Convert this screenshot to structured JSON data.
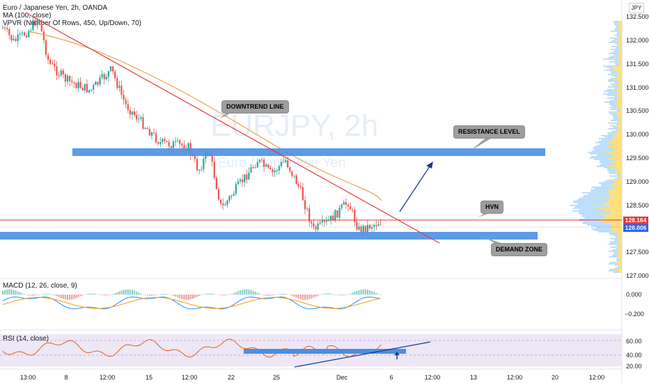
{
  "header": {
    "title": "Euro / Japanese Yen, 2h, OANDA",
    "ma": "MA (100, close)",
    "vpvr": "VPVR (Number Of Rows, 450, Up/Down, 70)",
    "currency": "JPY"
  },
  "watermark": {
    "symbol": "EURJPY, 2h",
    "name": "Euro / Japanese Yen"
  },
  "price_axis": [
    "132.500",
    "132.000",
    "131.500",
    "131.000",
    "130.500",
    "130.000",
    "129.500",
    "129.000",
    "128.500",
    "127.500",
    "127.000"
  ],
  "price_tags": {
    "red": "128.164",
    "blue": "128.006"
  },
  "macd": {
    "label": "MACD (12, 26, close, 9)",
    "ticks": [
      "0.000",
      "−0.200"
    ]
  },
  "rsi": {
    "label": "RSI (14, close)",
    "ticks": [
      "60.00",
      "40.00",
      "20.00"
    ]
  },
  "time_axis": [
    "13:00",
    "8",
    "12:00",
    "15",
    "12:00",
    "22",
    "25",
    "Dec",
    "6",
    "12:00",
    "13",
    "12:00",
    "20",
    "12:00"
  ],
  "annotations": {
    "downtrend": "DOWNTREND LINE",
    "resistance": "RESISTANCE LEVEL",
    "hvn": "HVN",
    "demand": "DEMAND ZONE"
  },
  "colors": {
    "up": "#26a69a",
    "down": "#ef5350",
    "zone": "#4a90e2",
    "trend": "#e53935",
    "ma": "#f0a04a",
    "arrow": "#1a3a8a",
    "rsi_bg": "#ede7f6"
  }
}
